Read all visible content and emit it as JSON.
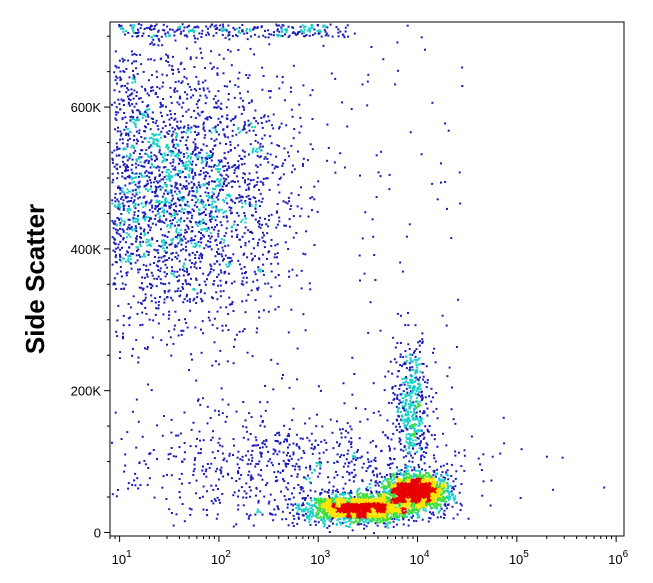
{
  "chart_data": {
    "type": "scatter",
    "title": "",
    "xlabel": "",
    "ylabel": "Side Scatter",
    "x_scale": "log",
    "x_range": [
      8,
      1200000
    ],
    "y_range": [
      -5000,
      720000
    ],
    "grid": false,
    "rendering": "density dot plot (pseudocolor: blue low density, cyan, green, yellow, red high density)",
    "x_ticks": [
      {
        "value": 10,
        "base": "10",
        "exp": "1"
      },
      {
        "value": 100,
        "base": "10",
        "exp": "2"
      },
      {
        "value": 1000,
        "base": "10",
        "exp": "3"
      },
      {
        "value": 10000,
        "base": "10",
        "exp": "4"
      },
      {
        "value": 100000,
        "base": "10",
        "exp": "5"
      },
      {
        "value": 1000000,
        "base": "10",
        "exp": "6"
      }
    ],
    "y_ticks": [
      {
        "value": 0,
        "label": "0"
      },
      {
        "value": 200000,
        "label": "200K"
      },
      {
        "value": 400000,
        "label": "400K"
      },
      {
        "value": 600000,
        "label": "600K"
      }
    ],
    "populations": [
      {
        "center_x": 40,
        "center_y": 480000,
        "count": 2600,
        "peak_density": "green"
      },
      {
        "center_x": 2500,
        "center_y": 35000,
        "count": 1800,
        "peak_density": "red"
      },
      {
        "center_x": 9500,
        "center_y": 60000,
        "count": 1700,
        "peak_density": "red"
      },
      {
        "center_x": 8500,
        "center_y": 180000,
        "count": 450,
        "peak_density": "green"
      },
      {
        "center_x": 600,
        "center_y": 90000,
        "count": 700,
        "peak_density": "blue"
      }
    ],
    "colors": {
      "low": "#1a1ab8",
      "mid": "#18d0c8",
      "mid_high": "#40dd40",
      "high": "#ffe400",
      "peak": "#e60000"
    }
  }
}
